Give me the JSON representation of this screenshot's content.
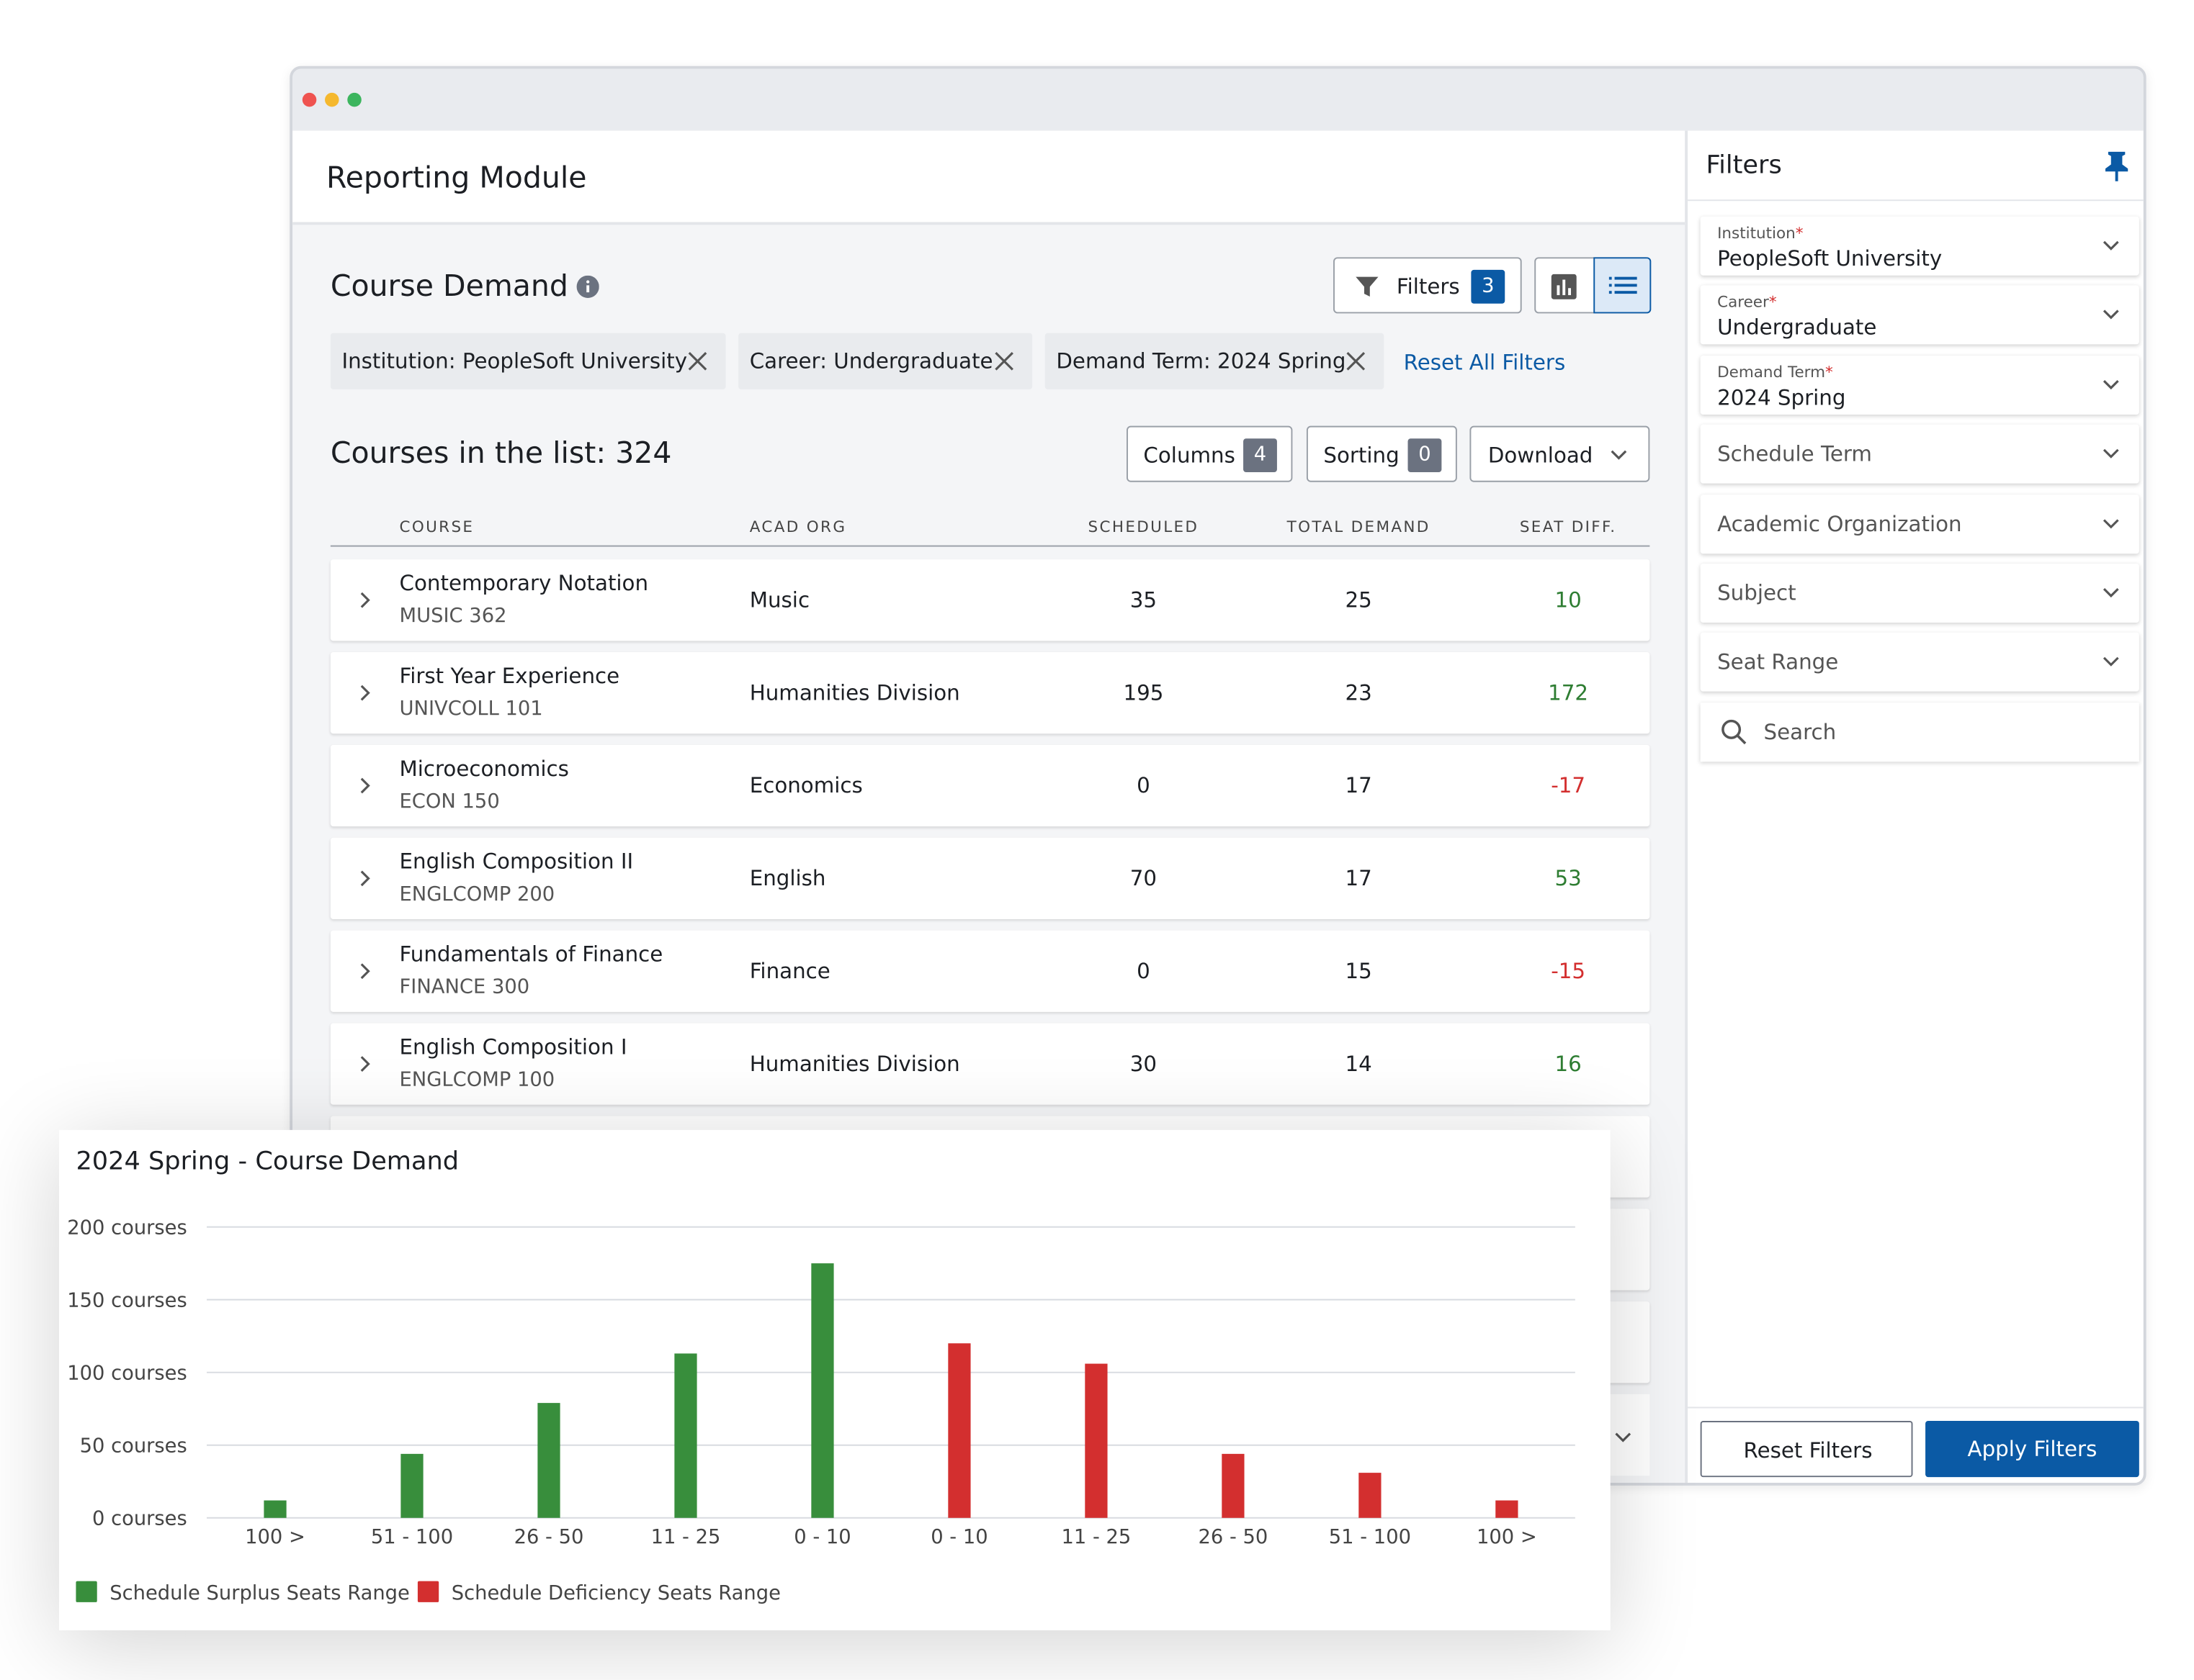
{
  "window": {
    "title": "Reporting Module"
  },
  "course_demand": {
    "title": "Course Demand",
    "filters_button": {
      "label": "Filters",
      "count": 3
    },
    "chips": [
      "Institution: PeopleSoft University",
      "Career: Undergraduate",
      "Demand Term: 2024 Spring"
    ],
    "reset_link": "Reset All Filters",
    "list_title": "Courses in the list: 324",
    "columns_button": {
      "label": "Columns",
      "count": 4
    },
    "sorting_button": {
      "label": "Sorting",
      "count": 0
    },
    "download_button": "Download"
  },
  "table": {
    "headers": [
      "COURSE",
      "ACAD ORG",
      "SCHEDULED",
      "TOTAL DEMAND",
      "SEAT DIFF."
    ],
    "rows": [
      [
        "Contemporary Notation",
        "MUSIC 362",
        "Music",
        35,
        25,
        10
      ],
      [
        "First Year Experience",
        "UNIVCOLL 101",
        "Humanities Division",
        195,
        23,
        172
      ],
      [
        "Microeconomics",
        "ECON 150",
        "Economics",
        0,
        17,
        -17
      ],
      [
        "English Composition II",
        "ENGLCOMP 200",
        "English",
        70,
        17,
        53
      ],
      [
        "Fundamentals of Finance",
        "FINANCE 300",
        "Finance",
        0,
        15,
        -15
      ],
      [
        "English Composition I",
        "ENGLCOMP 100",
        "Humanities Division",
        30,
        14,
        16
      ]
    ]
  },
  "filters_panel": {
    "title": "Filters",
    "fields": [
      {
        "label": "Institution",
        "required": "*",
        "value": "PeopleSoft University"
      },
      {
        "label": "Career",
        "required": "*",
        "value": "Undergraduate"
      },
      {
        "label": "Demand Term",
        "required": "*",
        "value": "2024 Spring"
      },
      {
        "label": "Schedule Term"
      },
      {
        "label": "Academic Organization"
      },
      {
        "label": "Subject"
      },
      {
        "label": "Seat Range"
      }
    ],
    "search": "Search",
    "reset_button": "Reset Filters",
    "apply_button": "Apply Filters"
  },
  "chart_data": {
    "type": "bar",
    "title": "2024 Spring - Course Demand",
    "categories": [
      "100 >",
      "51 - 100",
      "26 - 50",
      "11 - 25",
      "0 - 10",
      "0 - 10",
      "11 - 25",
      "26 - 50",
      "51 - 100",
      "100 >"
    ],
    "series": [
      {
        "name": "Schedule Surplus Seats Range",
        "color": "#388e3c",
        "values": [
          12,
          44,
          79,
          113,
          175,
          null,
          null,
          null,
          null,
          null
        ]
      },
      {
        "name": "Schedule Deficiency Seats Range",
        "color": "#d32f2f",
        "values": [
          null,
          null,
          null,
          null,
          null,
          120,
          106,
          44,
          31,
          12
        ]
      }
    ],
    "ylim": [
      0,
      200
    ],
    "yticks": [
      {
        "value": 0,
        "label": "0 courses"
      },
      {
        "value": 50,
        "label": "50 courses"
      },
      {
        "value": 100,
        "label": "100 courses"
      },
      {
        "value": 150,
        "label": "150 courses"
      },
      {
        "value": 200,
        "label": "200 courses"
      }
    ],
    "grid": true
  }
}
